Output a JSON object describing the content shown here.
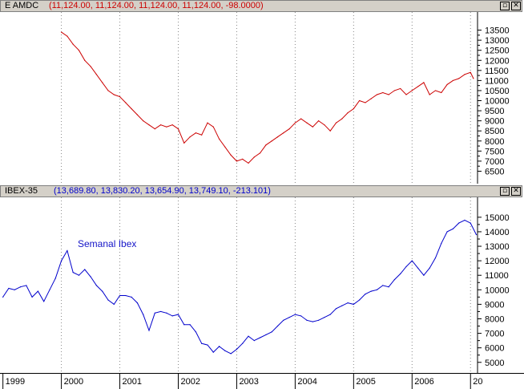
{
  "top_pane": {
    "name": "E AMDC",
    "values": "(11,124.00, 11,124.00, 11,124.00, 11,124.00, -98.0000)",
    "values_color": "#cc0000",
    "minimize_icon": "minimize-icon",
    "close_icon": "close-icon"
  },
  "bottom_pane": {
    "name": "IBEX-35",
    "values": "(13,689.80, 13,830.20, 13,654.90, 13,749.10, -213.101)",
    "values_color": "#0000cc",
    "minimize_icon": "minimize-icon",
    "close_icon": "close-icon",
    "annotation": "Semanal Ibex"
  },
  "x_axis": {
    "labels": [
      "1999",
      "2000",
      "2001",
      "2002",
      "2003",
      "2004",
      "2005",
      "2006",
      "20"
    ]
  },
  "chart_data": [
    {
      "type": "line",
      "title": "E AMDC",
      "color": "#cc0000",
      "ylim": [
        6200,
        14000
      ],
      "y_ticks": [
        6500,
        7000,
        7500,
        8000,
        8500,
        9000,
        9500,
        10000,
        10500,
        11000,
        11500,
        12000,
        12500,
        13000,
        13500
      ],
      "x": [
        2000.0,
        2000.1,
        2000.2,
        2000.3,
        2000.4,
        2000.5,
        2000.6,
        2000.7,
        2000.8,
        2000.9,
        2001.0,
        2001.1,
        2001.2,
        2001.3,
        2001.4,
        2001.5,
        2001.6,
        2001.7,
        2001.8,
        2001.9,
        2002.0,
        2002.1,
        2002.2,
        2002.3,
        2002.4,
        2002.5,
        2002.6,
        2002.7,
        2002.8,
        2002.9,
        2003.0,
        2003.1,
        2003.2,
        2003.3,
        2003.4,
        2003.5,
        2003.6,
        2003.7,
        2003.8,
        2003.9,
        2004.0,
        2004.1,
        2004.2,
        2004.3,
        2004.4,
        2004.5,
        2004.6,
        2004.7,
        2004.8,
        2004.9,
        2005.0,
        2005.1,
        2005.2,
        2005.3,
        2005.4,
        2005.5,
        2005.6,
        2005.7,
        2005.8,
        2005.9,
        2006.0,
        2006.1,
        2006.2,
        2006.3,
        2006.4,
        2006.5,
        2006.6,
        2006.7,
        2006.8,
        2006.9,
        2007.0,
        2007.05
      ],
      "y": [
        13400,
        13200,
        12800,
        12500,
        12000,
        11700,
        11300,
        10900,
        10500,
        10300,
        10200,
        9900,
        9600,
        9300,
        9000,
        8800,
        8600,
        8800,
        8700,
        8800,
        8600,
        7900,
        8200,
        8400,
        8300,
        8900,
        8700,
        8100,
        7700,
        7300,
        7000,
        7100,
        6900,
        7200,
        7400,
        7800,
        8000,
        8200,
        8400,
        8600,
        8900,
        9100,
        8900,
        8700,
        9000,
        8800,
        8500,
        8900,
        9100,
        9400,
        9600,
        10000,
        9900,
        10100,
        10300,
        10400,
        10300,
        10500,
        10600,
        10300,
        10500,
        10700,
        10900,
        10300,
        10500,
        10400,
        10800,
        11000,
        11100,
        11300,
        11400,
        11100
      ]
    },
    {
      "type": "line",
      "title": "IBEX-35",
      "color": "#0000cc",
      "ylim": [
        4600,
        15600
      ],
      "y_ticks": [
        5000,
        6000,
        7000,
        8000,
        9000,
        10000,
        11000,
        12000,
        13000,
        14000,
        15000
      ],
      "x": [
        1999.0,
        1999.1,
        1999.2,
        1999.3,
        1999.4,
        1999.5,
        1999.6,
        1999.7,
        1999.8,
        1999.9,
        2000.0,
        2000.1,
        2000.2,
        2000.3,
        2000.4,
        2000.5,
        2000.6,
        2000.7,
        2000.8,
        2000.9,
        2001.0,
        2001.1,
        2001.2,
        2001.3,
        2001.4,
        2001.5,
        2001.6,
        2001.7,
        2001.8,
        2001.9,
        2002.0,
        2002.1,
        2002.2,
        2002.3,
        2002.4,
        2002.5,
        2002.6,
        2002.7,
        2002.8,
        2002.9,
        2003.0,
        2003.1,
        2003.2,
        2003.3,
        2003.4,
        2003.5,
        2003.6,
        2003.7,
        2003.8,
        2003.9,
        2004.0,
        2004.1,
        2004.2,
        2004.3,
        2004.4,
        2004.5,
        2004.6,
        2004.7,
        2004.8,
        2004.9,
        2005.0,
        2005.1,
        2005.2,
        2005.3,
        2005.4,
        2005.5,
        2005.6,
        2005.7,
        2005.8,
        2005.9,
        2006.0,
        2006.1,
        2006.2,
        2006.3,
        2006.4,
        2006.5,
        2006.6,
        2006.7,
        2006.8,
        2006.9,
        2007.0,
        2007.1
      ],
      "y": [
        9500,
        10100,
        10000,
        10200,
        10300,
        9500,
        9900,
        9200,
        10000,
        10800,
        12000,
        12700,
        11200,
        11000,
        11400,
        10900,
        10300,
        9900,
        9300,
        9000,
        9600,
        9600,
        9500,
        9100,
        8300,
        7200,
        8400,
        8500,
        8400,
        8200,
        8300,
        7600,
        7600,
        7100,
        6300,
        6200,
        5700,
        6100,
        5800,
        5600,
        5900,
        6300,
        6800,
        6500,
        6700,
        6900,
        7100,
        7500,
        7900,
        8100,
        8300,
        8200,
        7900,
        7800,
        7900,
        8100,
        8300,
        8700,
        8900,
        9100,
        9000,
        9300,
        9700,
        9900,
        10000,
        10300,
        10200,
        10700,
        11100,
        11600,
        12000,
        11500,
        11000,
        11500,
        12200,
        13200,
        14000,
        14200,
        14600,
        14800,
        14600,
        13800
      ]
    }
  ]
}
